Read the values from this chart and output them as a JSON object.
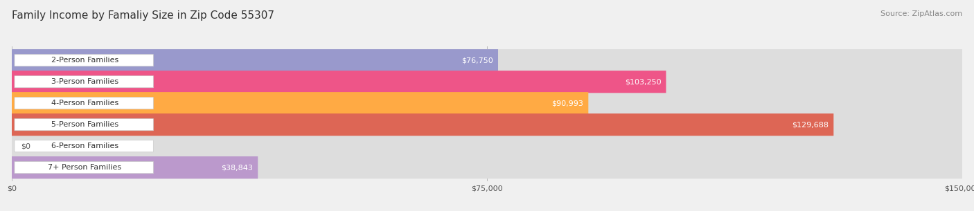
{
  "title": "Family Income by Famaliy Size in Zip Code 55307",
  "source": "Source: ZipAtlas.com",
  "categories": [
    "2-Person Families",
    "3-Person Families",
    "4-Person Families",
    "5-Person Families",
    "6-Person Families",
    "7+ Person Families"
  ],
  "values": [
    76750,
    103250,
    90993,
    129688,
    0,
    38843
  ],
  "bar_colors": [
    "#9999cc",
    "#ee5588",
    "#ffaa44",
    "#dd6655",
    "#aaccee",
    "#bb99cc"
  ],
  "xmax": 150000,
  "xtick_labels": [
    "$0",
    "$75,000",
    "$150,000"
  ],
  "background_color": "#f0f0f0",
  "title_fontsize": 11,
  "source_fontsize": 8,
  "bar_height": 0.6,
  "bar_label_fontsize": 8,
  "category_fontsize": 8
}
